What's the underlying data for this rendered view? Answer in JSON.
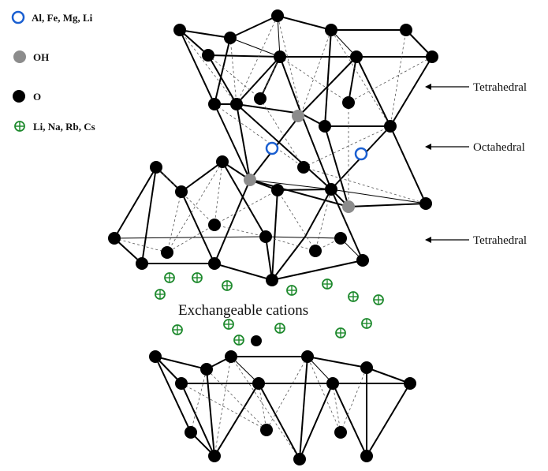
{
  "legend": {
    "items": [
      {
        "label": "Al, Fe, Mg, Li",
        "symbol": "octahedral-cation",
        "color": "#1a5fd1"
      },
      {
        "label": "OH",
        "symbol": "hydroxyl",
        "color": "#8c8c8c"
      },
      {
        "label": "O",
        "symbol": "oxygen",
        "color": "#000000"
      },
      {
        "label": "Li, Na, Rb, Cs",
        "symbol": "exchangeable-cation",
        "color": "#1f8a2e"
      }
    ]
  },
  "labels": {
    "tetrahedral_top": "Tetrahedral",
    "octahedral": "Octahedral",
    "tetrahedral_bottom": "Tetrahedral",
    "exchangeable": "Exchangeable cations"
  }
}
